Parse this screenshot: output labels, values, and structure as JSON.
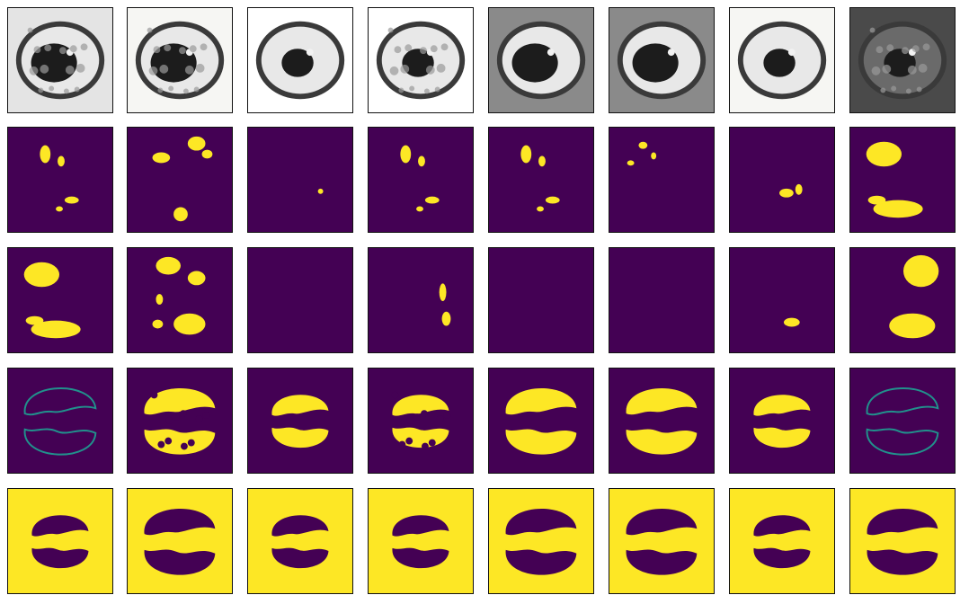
{
  "figure": {
    "rows": [
      {
        "kind": "ct-slice"
      },
      {
        "kind": "mask"
      },
      {
        "kind": "mask"
      },
      {
        "kind": "mask"
      },
      {
        "kind": "mask"
      }
    ],
    "columns": 8
  },
  "colors": {
    "mask_background": "#440154",
    "mask_foreground": "#fde725",
    "mask_edge": "#21918c",
    "ct_dark": "#1c1c1c",
    "ct_light": "#f2f2f2",
    "frame": "#111111"
  },
  "cells": [
    [
      {
        "label": "ct-scan",
        "bg": "light-gray",
        "lung": "mottled-light",
        "heart": "dark-large"
      },
      {
        "label": "ct-scan",
        "bg": "paper",
        "lung": "mottled-light",
        "heart": "dark-large"
      },
      {
        "label": "ct-scan",
        "bg": "white",
        "lung": "clear",
        "heart": "dark"
      },
      {
        "label": "ct-scan",
        "bg": "white",
        "lung": "mottled-light",
        "heart": "dark"
      },
      {
        "label": "ct-scan",
        "bg": "gray",
        "lung": "clear",
        "heart": "dark-large"
      },
      {
        "label": "ct-scan",
        "bg": "gray",
        "lung": "clear",
        "heart": "dark-large"
      },
      {
        "label": "ct-scan",
        "bg": "paper",
        "lung": "clear",
        "heart": "dark"
      },
      {
        "label": "ct-scan",
        "bg": "dark-gray",
        "lung": "dense",
        "heart": "dark"
      }
    ],
    [
      {
        "label": "infection-mask-small",
        "fill": "sparse-left"
      },
      {
        "label": "infection-mask-small",
        "fill": "sparse-both"
      },
      {
        "label": "infection-mask-small",
        "fill": "dot"
      },
      {
        "label": "infection-mask-small",
        "fill": "sparse-left"
      },
      {
        "label": "infection-mask-small",
        "fill": "sparse-left"
      },
      {
        "label": "infection-mask-small",
        "fill": "sparse-top"
      },
      {
        "label": "infection-mask-small",
        "fill": "sparse-right"
      },
      {
        "label": "infection-mask-small",
        "fill": "two-blobs"
      }
    ],
    [
      {
        "label": "infection-mask-large",
        "fill": "two-blobs"
      },
      {
        "label": "infection-mask-large",
        "fill": "scattered"
      },
      {
        "label": "infection-mask-large",
        "fill": "empty"
      },
      {
        "label": "infection-mask-large",
        "fill": "thin-right"
      },
      {
        "label": "infection-mask-large",
        "fill": "empty"
      },
      {
        "label": "infection-mask-large",
        "fill": "empty"
      },
      {
        "label": "infection-mask-large",
        "fill": "dot-bottom"
      },
      {
        "label": "infection-mask-large",
        "fill": "two-blobs-right"
      }
    ],
    [
      {
        "label": "lung-mask",
        "fill": "outline"
      },
      {
        "label": "lung-mask",
        "fill": "partial"
      },
      {
        "label": "lung-mask",
        "fill": "full-small"
      },
      {
        "label": "lung-mask",
        "fill": "partial-small"
      },
      {
        "label": "lung-mask",
        "fill": "full-large"
      },
      {
        "label": "lung-mask",
        "fill": "full-large"
      },
      {
        "label": "lung-mask",
        "fill": "full-small"
      },
      {
        "label": "lung-mask",
        "fill": "outline"
      }
    ],
    [
      {
        "label": "inverse-lung-mask",
        "fill": "inverse-small"
      },
      {
        "label": "inverse-lung-mask",
        "fill": "inverse-large"
      },
      {
        "label": "inverse-lung-mask",
        "fill": "inverse-small"
      },
      {
        "label": "inverse-lung-mask",
        "fill": "inverse-small"
      },
      {
        "label": "inverse-lung-mask",
        "fill": "inverse-large"
      },
      {
        "label": "inverse-lung-mask",
        "fill": "inverse-large"
      },
      {
        "label": "inverse-lung-mask",
        "fill": "inverse-small"
      },
      {
        "label": "inverse-lung-mask",
        "fill": "inverse-large"
      }
    ]
  ]
}
